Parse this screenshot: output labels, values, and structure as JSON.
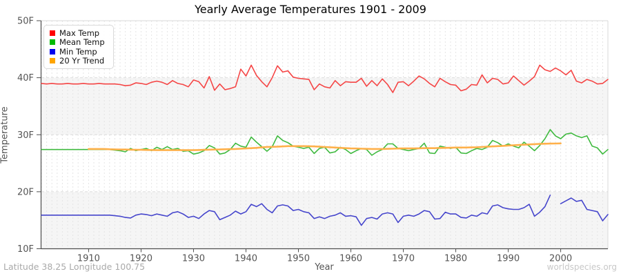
{
  "header": {
    "title": "Yearly Average Temperatures 1901 - 2009"
  },
  "axes": {
    "y_label": "Temperature",
    "x_label": "Year",
    "y_ticks": [
      "10F",
      "20F",
      "30F",
      "40F",
      "50F"
    ],
    "y_tick_values": [
      10,
      20,
      30,
      40,
      50
    ],
    "x_ticks": [
      1910,
      1920,
      1930,
      1940,
      1950,
      1960,
      1970,
      1980,
      1990,
      2000
    ]
  },
  "legend": {
    "position": "top-left",
    "items": [
      {
        "label": "Max Temp",
        "color": "#ff0000"
      },
      {
        "label": "Mean Temp",
        "color": "#00bb00"
      },
      {
        "label": "Min Temp",
        "color": "#0000ee"
      },
      {
        "label": "20 Yr Trend",
        "color": "#ffa500"
      }
    ]
  },
  "footer": {
    "left": "Latitude 38.25 Longitude 100.75",
    "right": "worldspecies.org"
  },
  "chart_data": {
    "type": "line",
    "title": "Yearly Average Temperatures 1901 - 2009",
    "xlabel": "Year",
    "ylabel": "Temperature",
    "x_range": [
      1901,
      2009
    ],
    "ylim": [
      10,
      50
    ],
    "grid": true,
    "legend_position": "top-left",
    "band_colors": [
      "#ffffff",
      "#f5f5f5"
    ],
    "gridline_color": "#e4e4e4",
    "axis_color": "#4d4d4d",
    "years": [
      1901,
      1902,
      1903,
      1904,
      1905,
      1906,
      1907,
      1908,
      1909,
      1910,
      1911,
      1912,
      1913,
      1914,
      1915,
      1916,
      1917,
      1918,
      1919,
      1920,
      1921,
      1922,
      1923,
      1924,
      1925,
      1926,
      1927,
      1928,
      1929,
      1930,
      1931,
      1932,
      1933,
      1934,
      1935,
      1936,
      1937,
      1938,
      1939,
      1940,
      1941,
      1942,
      1943,
      1944,
      1945,
      1946,
      1947,
      1948,
      1949,
      1950,
      1951,
      1952,
      1953,
      1954,
      1955,
      1956,
      1957,
      1958,
      1959,
      1960,
      1961,
      1962,
      1963,
      1964,
      1965,
      1966,
      1967,
      1968,
      1969,
      1970,
      1971,
      1972,
      1973,
      1974,
      1975,
      1976,
      1977,
      1978,
      1979,
      1980,
      1981,
      1982,
      1983,
      1984,
      1985,
      1986,
      1987,
      1988,
      1989,
      1990,
      1991,
      1992,
      1993,
      1994,
      1995,
      1996,
      1997,
      1998,
      1999,
      2000,
      2001,
      2002,
      2003,
      2004,
      2005,
      2006,
      2007,
      2008,
      2009
    ],
    "series": [
      {
        "name": "Max Temp",
        "color": "#f54545",
        "width": 1.6,
        "values": [
          39,
          38.9,
          39,
          38.9,
          38.9,
          39,
          38.9,
          38.9,
          39,
          38.9,
          38.9,
          39,
          38.9,
          38.9,
          38.9,
          38.8,
          38.6,
          38.7,
          39.1,
          39,
          38.8,
          39.2,
          39.4,
          39.2,
          38.8,
          39.5,
          39,
          38.8,
          38.4,
          39.6,
          39.3,
          38.2,
          40.2,
          37.8,
          38.9,
          37.9,
          38.1,
          38.4,
          41.5,
          40.3,
          42.2,
          40.4,
          39.3,
          38.4,
          40,
          42.1,
          41,
          41.2,
          40.1,
          39.9,
          39.8,
          39.7,
          37.9,
          38.9,
          38.4,
          38.2,
          39.5,
          38.6,
          39.3,
          39.2,
          39.2,
          39.9,
          38.5,
          39.5,
          38.6,
          39.8,
          38.8,
          37.4,
          39.2,
          39.3,
          38.6,
          39.4,
          40.3,
          39.8,
          39,
          38.4,
          39.9,
          39.3,
          38.8,
          38.7,
          37.7,
          38,
          38.8,
          38.7,
          40.5,
          39.1,
          39.9,
          39.7,
          38.9,
          39.1,
          40.3,
          39.5,
          38.7,
          39.4,
          40.2,
          42.2,
          41.4,
          41.1,
          41.7,
          41.2,
          40.5,
          41.3,
          39.4,
          39.1,
          39.7,
          39.4,
          38.9,
          39,
          39.7
        ]
      },
      {
        "name": "Mean Temp",
        "color": "#3fba3f",
        "width": 1.6,
        "values": [
          27.4,
          27.4,
          27.4,
          27.4,
          27.4,
          27.4,
          27.4,
          27.4,
          27.4,
          27.4,
          27.4,
          27.4,
          27.4,
          27.4,
          27.3,
          27.2,
          27,
          27.6,
          27.2,
          27.4,
          27.6,
          27.2,
          27.8,
          27.4,
          27.9,
          27.4,
          27.6,
          27.1,
          27.2,
          26.6,
          26.8,
          27.2,
          28.1,
          27.7,
          26.6,
          26.8,
          27.4,
          28.5,
          28,
          27.8,
          29.6,
          28.7,
          27.9,
          27.1,
          27.9,
          29.8,
          29,
          28.6,
          28,
          27.8,
          27.6,
          27.8,
          26.7,
          27.6,
          27.8,
          26.8,
          27,
          27.8,
          27.4,
          26.7,
          27.2,
          27.6,
          27.4,
          26.4,
          27,
          27.4,
          28.4,
          28.4,
          27.6,
          27.4,
          27.2,
          27.4,
          27.6,
          28.5,
          26.8,
          26.7,
          28,
          27.8,
          27.6,
          27.8,
          26.8,
          26.7,
          27.2,
          27.6,
          27.4,
          27.8,
          29,
          28.6,
          28,
          28.4,
          28,
          27.7,
          28.7,
          28,
          27.2,
          28.1,
          29.3,
          30.9,
          29.8,
          29.3,
          30.1,
          30.3,
          29.8,
          29.5,
          29.8,
          28,
          27.7,
          26.6,
          27.4
        ]
      },
      {
        "name": "Min Temp",
        "color": "#4545cc",
        "width": 1.6,
        "values": [
          15.9,
          15.9,
          15.9,
          15.9,
          15.9,
          15.9,
          15.9,
          15.9,
          15.9,
          15.9,
          15.9,
          15.9,
          15.9,
          15.9,
          15.8,
          15.7,
          15.5,
          15.4,
          15.9,
          16.1,
          16,
          15.8,
          16.1,
          15.9,
          15.7,
          16.3,
          16.5,
          16.1,
          15.5,
          15.7,
          15.3,
          16.1,
          16.7,
          16.5,
          15.1,
          15.5,
          15.9,
          16.6,
          16.1,
          16.5,
          17.8,
          17.4,
          17.9,
          16.9,
          16.3,
          17.5,
          17.7,
          17.5,
          16.7,
          16.9,
          16.5,
          16.3,
          15.3,
          15.6,
          15.3,
          15.7,
          15.9,
          16.3,
          15.7,
          15.8,
          15.6,
          14.1,
          15.3,
          15.5,
          15.2,
          16.1,
          16.3,
          16.1,
          14.6,
          15.7,
          15.9,
          15.7,
          16.1,
          16.7,
          16.5,
          15.2,
          15.3,
          16.4,
          16.1,
          16.1,
          15.5,
          15.4,
          15.9,
          15.7,
          16.3,
          16.1,
          17.5,
          17.7,
          17.2,
          17,
          16.9,
          16.9,
          17.2,
          17.8,
          15.7,
          16.4,
          17.4,
          19.4,
          null,
          17.9,
          18.4,
          18.9,
          18.3,
          18.5,
          16.9,
          16.7,
          16.5,
          14.9,
          16
        ]
      },
      {
        "name": "20 Yr Trend",
        "color": "#ffb04a",
        "width": 2.6,
        "values": [
          null,
          null,
          null,
          null,
          null,
          null,
          null,
          null,
          null,
          27.5,
          27.5,
          27.5,
          27.5,
          27.45,
          27.43,
          27.4,
          27.4,
          27.38,
          27.36,
          27.35,
          27.33,
          27.32,
          27.3,
          27.3,
          27.3,
          27.3,
          27.3,
          27.3,
          27.3,
          27.3,
          27.32,
          27.35,
          27.38,
          27.4,
          27.42,
          27.45,
          27.48,
          27.5,
          27.55,
          27.6,
          27.65,
          27.7,
          27.78,
          27.85,
          27.88,
          27.9,
          27.95,
          28,
          28,
          28,
          28,
          27.98,
          27.95,
          27.9,
          27.85,
          27.8,
          27.75,
          27.7,
          27.65,
          27.6,
          27.58,
          27.55,
          27.52,
          27.5,
          27.5,
          27.5,
          27.52,
          27.55,
          27.58,
          27.6,
          27.6,
          27.6,
          27.62,
          27.65,
          27.65,
          27.65,
          27.68,
          27.7,
          27.72,
          27.75,
          27.75,
          27.75,
          27.78,
          27.8,
          27.85,
          27.9,
          27.95,
          28,
          28.05,
          28.1,
          28.15,
          28.2,
          28.25,
          28.3,
          28.35,
          28.4,
          28.42,
          28.45,
          28.46,
          28.48,
          null,
          null,
          null,
          null,
          null,
          null,
          null,
          null,
          null
        ]
      }
    ]
  }
}
